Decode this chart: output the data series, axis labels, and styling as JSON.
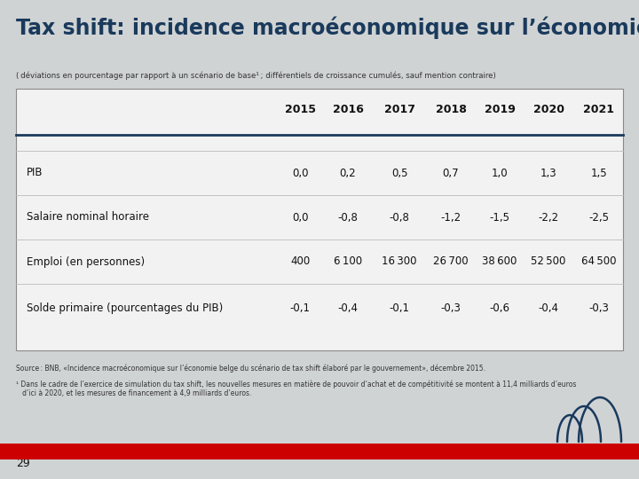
{
  "title": "Tax shift: incidence macroéconomique sur l’économie belge",
  "subtitle": "( déviations en pourcentage par rapport à un scénario de base¹ ; différentiels de croissance cumulés, sauf mention contraire)",
  "columns": [
    "2015",
    "2016",
    "2017",
    "2018",
    "2019",
    "2020",
    "2021"
  ],
  "rows": [
    {
      "label": "PIB",
      "values": [
        "0,0",
        "0,2",
        "0,5",
        "0,7",
        "1,0",
        "1,3",
        "1,5"
      ]
    },
    {
      "label": "Salaire nominal horaire",
      "values": [
        "0,0",
        "-0,8",
        "-0,8",
        "-1,2",
        "-1,5",
        "-2,2",
        "-2,5"
      ]
    },
    {
      "label": "Emploi (en personnes)",
      "values": [
        "400",
        "6 100",
        "16 300",
        "26 700",
        "38 600",
        "52 500",
        "64 500"
      ]
    },
    {
      "label": "Solde primaire (pourcentages du PIB)",
      "values": [
        "-0,1",
        "-0,4",
        "-0,1",
        "-0,3",
        "-0,6",
        "-0,4",
        "-0,3"
      ]
    }
  ],
  "footnote_source": "Source : BNB, «Incidence macroéconomique sur l’économie belge du scénario de tax shift élaboré par le gouvernement», décembre 2015.",
  "footnote_1": "¹ Dans le cadre de l’exercice de simulation du tax shift, les nouvelles mesures en matière de pouvoir d’achat et de compétitivité se montent à 11,4 milliards d’euros\n   d’ici à 2020, et les mesures de financement à 4,9 milliards d’euros.",
  "page_number": "29",
  "bg_color": "#d0d3d4",
  "table_bg": "#f2f2f2",
  "title_color": "#1a3a5c",
  "header_line_color": "#1a3a5c",
  "red_bar_color": "#cc0000",
  "logo_color": "#1a3a5c"
}
